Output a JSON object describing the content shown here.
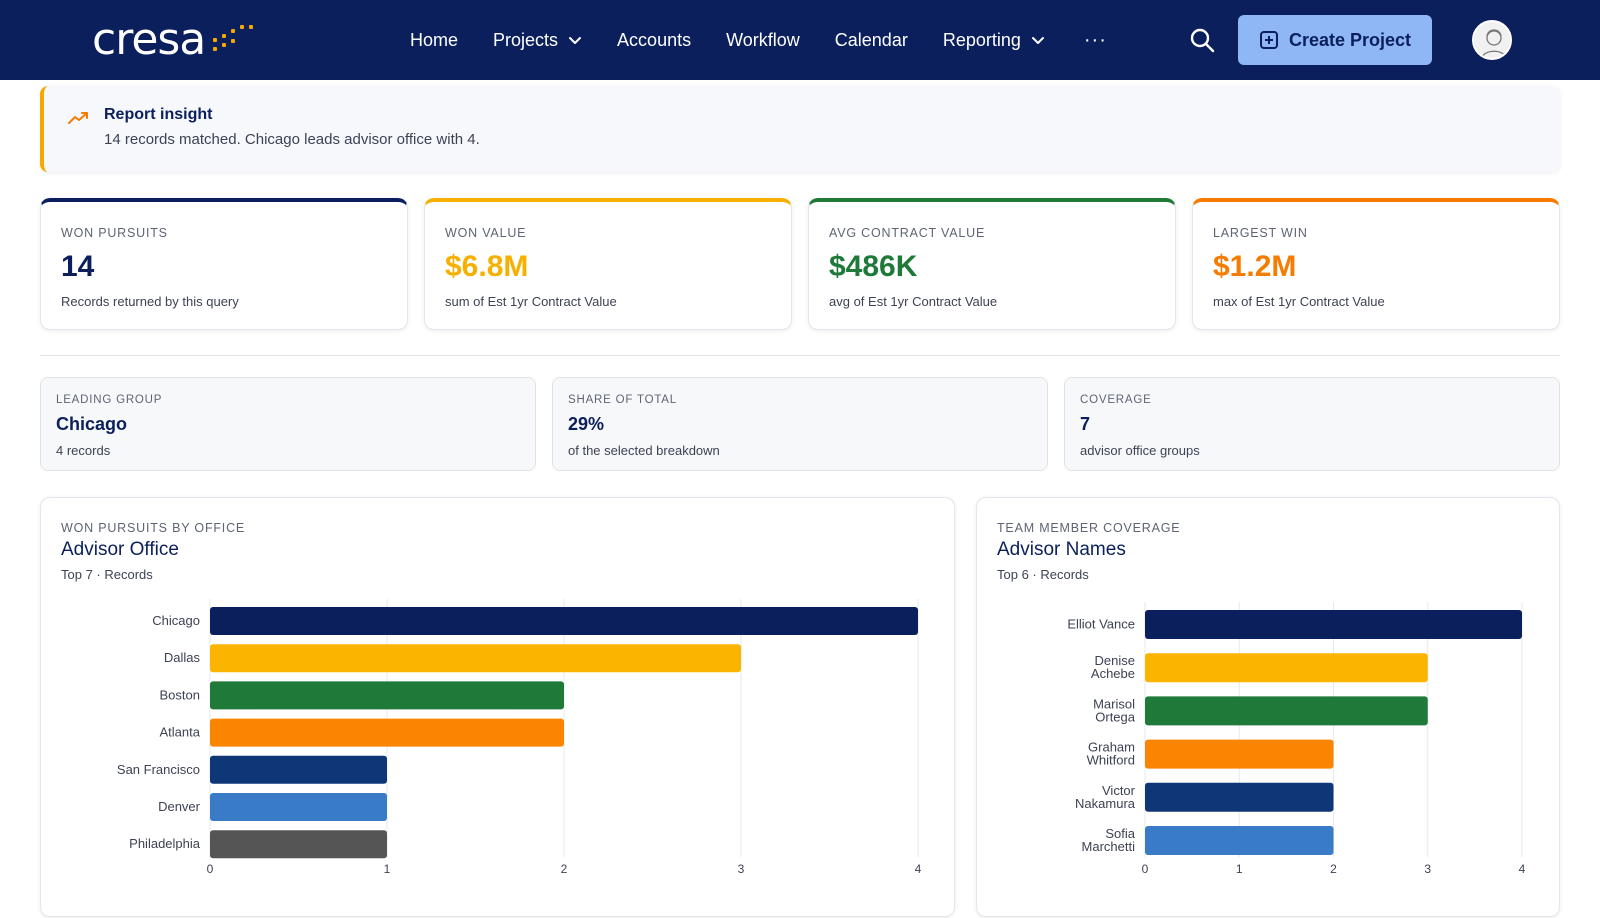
{
  "header": {
    "logo_text": "cresa",
    "nav": [
      {
        "label": "Home",
        "dropdown": false
      },
      {
        "label": "Projects",
        "dropdown": true
      },
      {
        "label": "Accounts",
        "dropdown": false
      },
      {
        "label": "Workflow",
        "dropdown": false
      },
      {
        "label": "Calendar",
        "dropdown": false
      },
      {
        "label": "Reporting",
        "dropdown": true
      }
    ],
    "more_label": "···",
    "create_label": "Create Project",
    "icons": {
      "search": "search-icon",
      "create": "plus-square-icon",
      "avatar": "user-avatar-icon"
    }
  },
  "insight": {
    "title": "Report insight",
    "text": "14 records matched. Chicago leads advisor office with 4.",
    "icon": "trending-up-icon",
    "accent": "#f5a800"
  },
  "kpis": [
    {
      "label": "Won Pursuits",
      "value": "14",
      "sub": "Records returned by this query",
      "color": "#0b1f5c"
    },
    {
      "label": "Won Value",
      "value": "$6.8M",
      "sub": "sum of Est 1yr Contract Value",
      "color": "#f5b000"
    },
    {
      "label": "Avg Contract Value",
      "value": "$486K",
      "sub": "avg of Est 1yr Contract Value",
      "color": "#1f7a3a"
    },
    {
      "label": "Largest Win",
      "value": "$1.2M",
      "sub": "max of Est 1yr Contract Value",
      "color": "#f57c00"
    }
  ],
  "summary": [
    {
      "label": "Leading Group",
      "value": "Chicago",
      "sub": "4 records"
    },
    {
      "label": "Share of Total",
      "value": "29%",
      "sub": "of the selected breakdown"
    },
    {
      "label": "Coverage",
      "value": "7",
      "sub": "advisor office groups"
    }
  ],
  "charts": [
    {
      "kicker": "Won Pursuits by Office",
      "title": "Advisor Office",
      "sub": "Top 7 · Records"
    },
    {
      "kicker": "Team Member Coverage",
      "title": "Advisor Names",
      "sub": "Top 6 · Records"
    }
  ],
  "chart_data": [
    {
      "type": "bar",
      "orientation": "horizontal",
      "categories": [
        "Chicago",
        "Dallas",
        "Boston",
        "Atlanta",
        "San Francisco",
        "Denver",
        "Philadelphia"
      ],
      "values": [
        4,
        3,
        2,
        2,
        1,
        1,
        1
      ],
      "colors": [
        "#0b1f5c",
        "#fbb400",
        "#1f7a3a",
        "#fb8500",
        "#0f3778",
        "#3a7bc8",
        "#555555"
      ],
      "xlim": [
        0,
        4
      ],
      "xticks": [
        "0",
        "1",
        "2",
        "3",
        "4"
      ],
      "grid": true
    },
    {
      "type": "bar",
      "orientation": "horizontal",
      "categories": [
        [
          "Elliot Vance"
        ],
        [
          "Denise",
          "Achebe"
        ],
        [
          "Marisol",
          "Ortega"
        ],
        [
          "Graham",
          "Whitford"
        ],
        [
          "Victor",
          "Nakamura"
        ],
        [
          "Sofia",
          "Marchetti"
        ]
      ],
      "values": [
        4,
        3,
        3,
        2,
        2,
        2
      ],
      "colors": [
        "#0b1f5c",
        "#fbb400",
        "#1f7a3a",
        "#fb8500",
        "#0f3778",
        "#3a7bc8"
      ],
      "xlim": [
        0,
        4
      ],
      "xticks": [
        "0",
        "1",
        "2",
        "3",
        "4"
      ],
      "grid": true
    }
  ]
}
